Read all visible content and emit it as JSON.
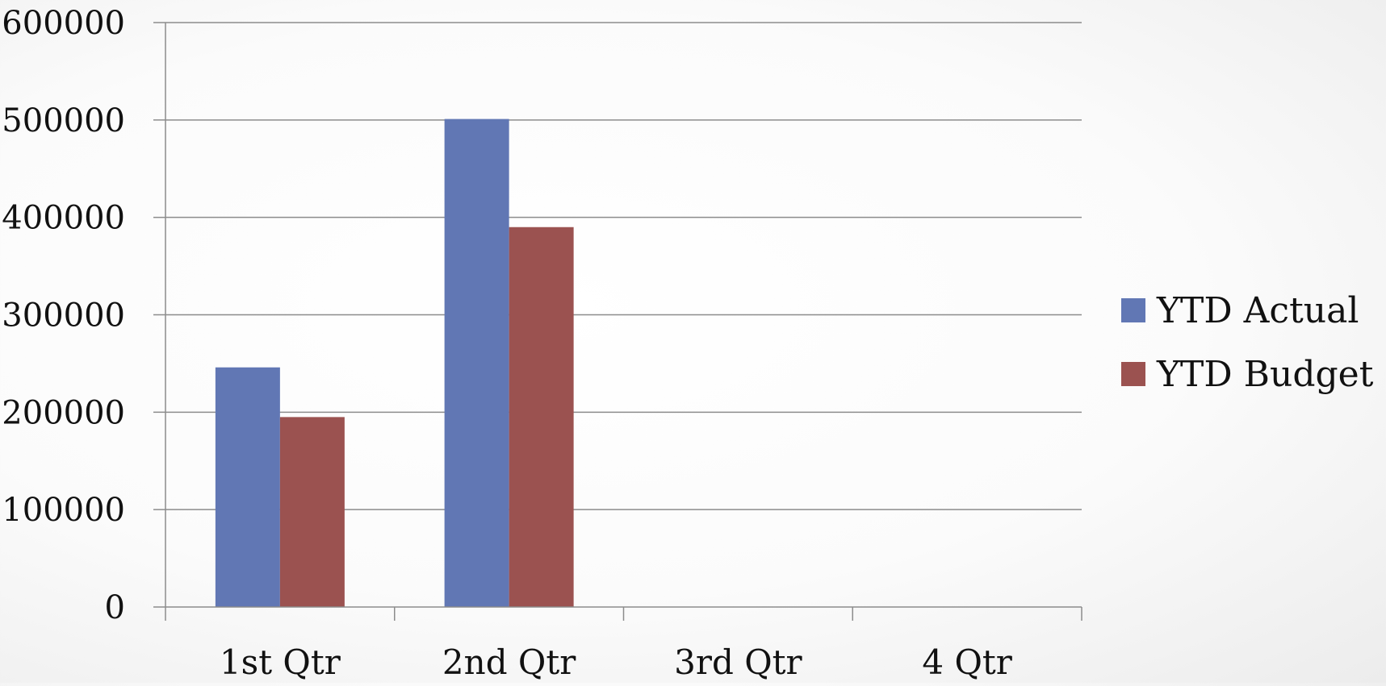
{
  "chart_data": {
    "type": "bar",
    "categories": [
      "1st Qtr",
      "2nd Qtr",
      "3rd Qtr",
      "4 Qtr"
    ],
    "series": [
      {
        "name": "YTD Actual",
        "color": "#6177b4",
        "values": [
          246000,
          501000,
          null,
          null
        ]
      },
      {
        "name": "YTD Budget",
        "color": "#9b5250",
        "values": [
          195000,
          390000,
          null,
          null
        ]
      }
    ],
    "ylim": [
      0,
      600000
    ],
    "yticks": [
      "0",
      "100000",
      "200000",
      "300000",
      "400000",
      "500000",
      "600000"
    ],
    "grid": true,
    "legend_position": "right"
  }
}
